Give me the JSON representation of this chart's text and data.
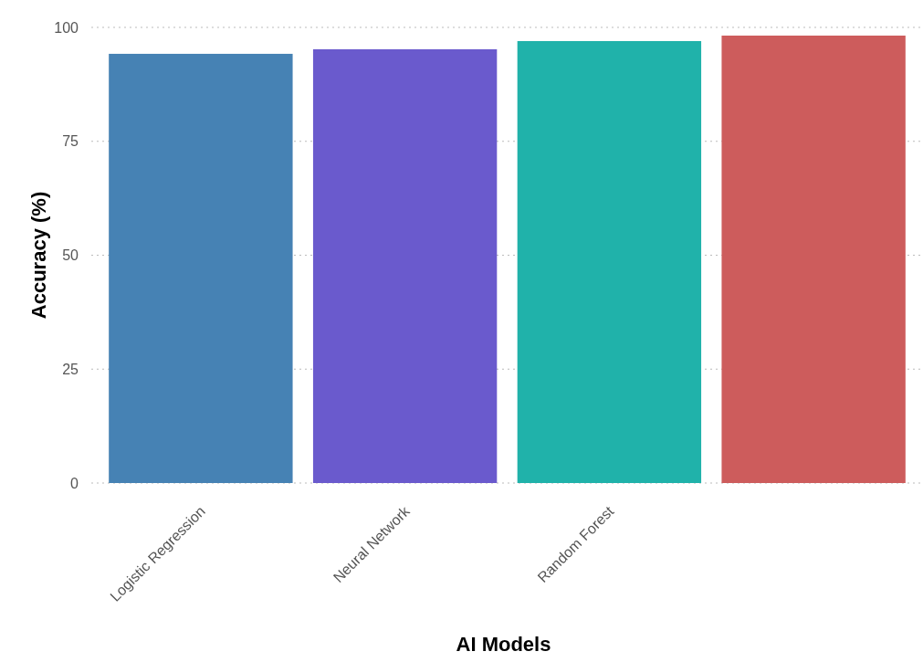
{
  "chart_data": {
    "type": "bar",
    "xlabel": "AI Models",
    "ylabel": "Accuracy (%)",
    "categories": [
      "Logistic Regression",
      "Neural Network",
      "Random Forest",
      null
    ],
    "values": [
      94.2,
      95.2,
      97.0,
      98.2
    ],
    "colors": [
      "#4682b4",
      "#6a5acd",
      "#20b2aa",
      "#cd5c5c"
    ],
    "ylim": [
      0,
      100
    ],
    "yticks": [
      0,
      25,
      50,
      75,
      100
    ],
    "grid": "y"
  }
}
